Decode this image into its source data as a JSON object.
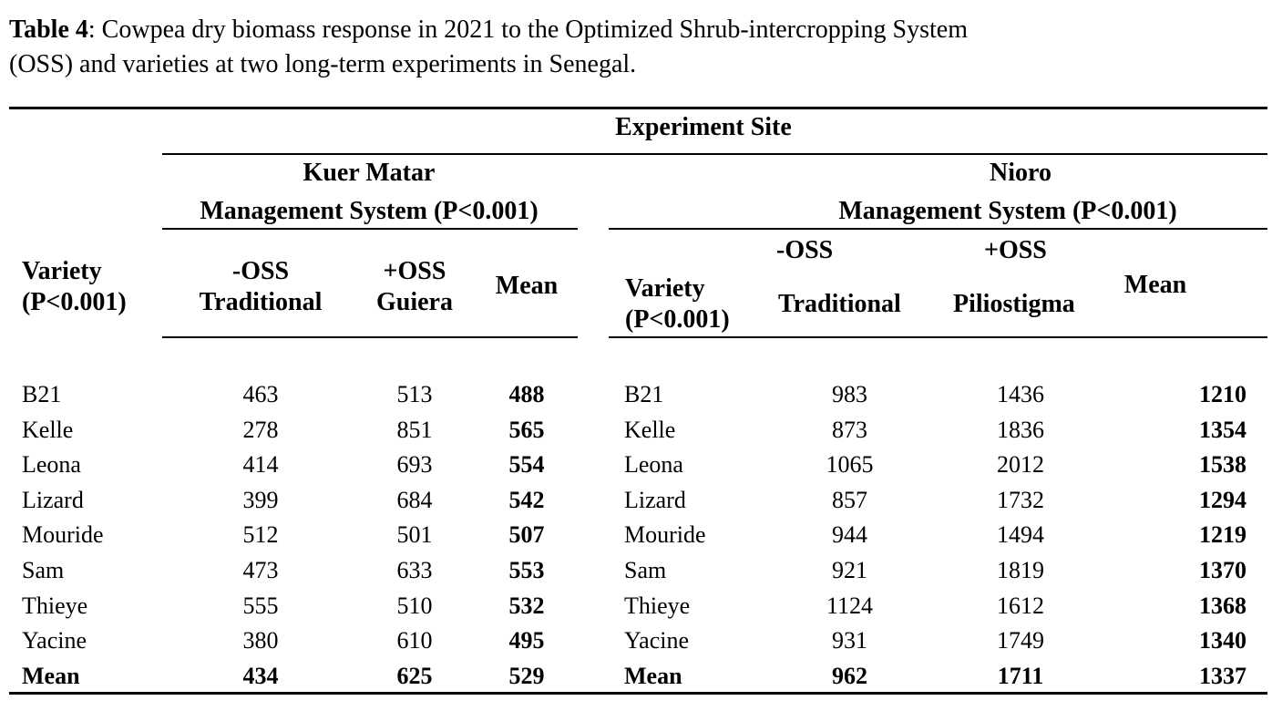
{
  "caption": {
    "label": "Table 4",
    "text_line1": ": Cowpea dry biomass  response in 2021 to the Optimized Shrub-intercropping System",
    "text_line2": "(OSS) and varieties at two long-term experiments in Senegal."
  },
  "header": {
    "experiment_site": "Experiment Site",
    "left": {
      "site": "Kuer Matar",
      "mgmt": "Management System (P<0.001)",
      "variety_line1": "Variety",
      "variety_line2": "(P<0.001)",
      "c1_line1": "-OSS",
      "c1_line2": "Traditional",
      "c2_line1": "+OSS",
      "c2_line2": "Guiera",
      "mean": "Mean"
    },
    "right": {
      "site": "Nioro",
      "mgmt": "Management System (P<0.001)",
      "variety_line1": "Variety",
      "variety_line2": "(P<0.001)",
      "c1_line1": "-OSS",
      "c1_line2": "Traditional",
      "c2_line1": "+OSS",
      "c2_line2": "Piliostigma",
      "mean": "Mean"
    }
  },
  "rows_left": [
    {
      "variety": "B21",
      "trad": "463",
      "oss": "513",
      "mean": "488"
    },
    {
      "variety": "Kelle",
      "trad": "278",
      "oss": "851",
      "mean": "565"
    },
    {
      "variety": "Leona",
      "trad": "414",
      "oss": "693",
      "mean": "554"
    },
    {
      "variety": "Lizard",
      "trad": "399",
      "oss": "684",
      "mean": "542"
    },
    {
      "variety": "Mouride",
      "trad": "512",
      "oss": "501",
      "mean": "507"
    },
    {
      "variety": "Sam",
      "trad": "473",
      "oss": "633",
      "mean": "553"
    },
    {
      "variety": "Thieye",
      "trad": "555",
      "oss": "510",
      "mean": "532"
    },
    {
      "variety": "Yacine",
      "trad": "380",
      "oss": "610",
      "mean": "495"
    },
    {
      "variety": "Mean",
      "trad": "434",
      "oss": "625",
      "mean": "529"
    }
  ],
  "rows_right": [
    {
      "variety": "B21",
      "trad": "983",
      "oss": "1436",
      "mean": "1210"
    },
    {
      "variety": "Kelle",
      "trad": "873",
      "oss": "1836",
      "mean": "1354"
    },
    {
      "variety": "Leona",
      "trad": "1065",
      "oss": "2012",
      "mean": "1538"
    },
    {
      "variety": "Lizard",
      "trad": "857",
      "oss": "1732",
      "mean": "1294"
    },
    {
      "variety": "Mouride",
      "trad": "944",
      "oss": "1494",
      "mean": "1219"
    },
    {
      "variety": "Sam",
      "trad": "921",
      "oss": "1819",
      "mean": "1370"
    },
    {
      "variety": "Thieye",
      "trad": "1124",
      "oss": "1612",
      "mean": "1368"
    },
    {
      "variety": "Yacine",
      "trad": "931",
      "oss": "1749",
      "mean": "1340"
    },
    {
      "variety": "Mean",
      "trad": "962",
      "oss": "1711",
      "mean": "1337"
    }
  ]
}
